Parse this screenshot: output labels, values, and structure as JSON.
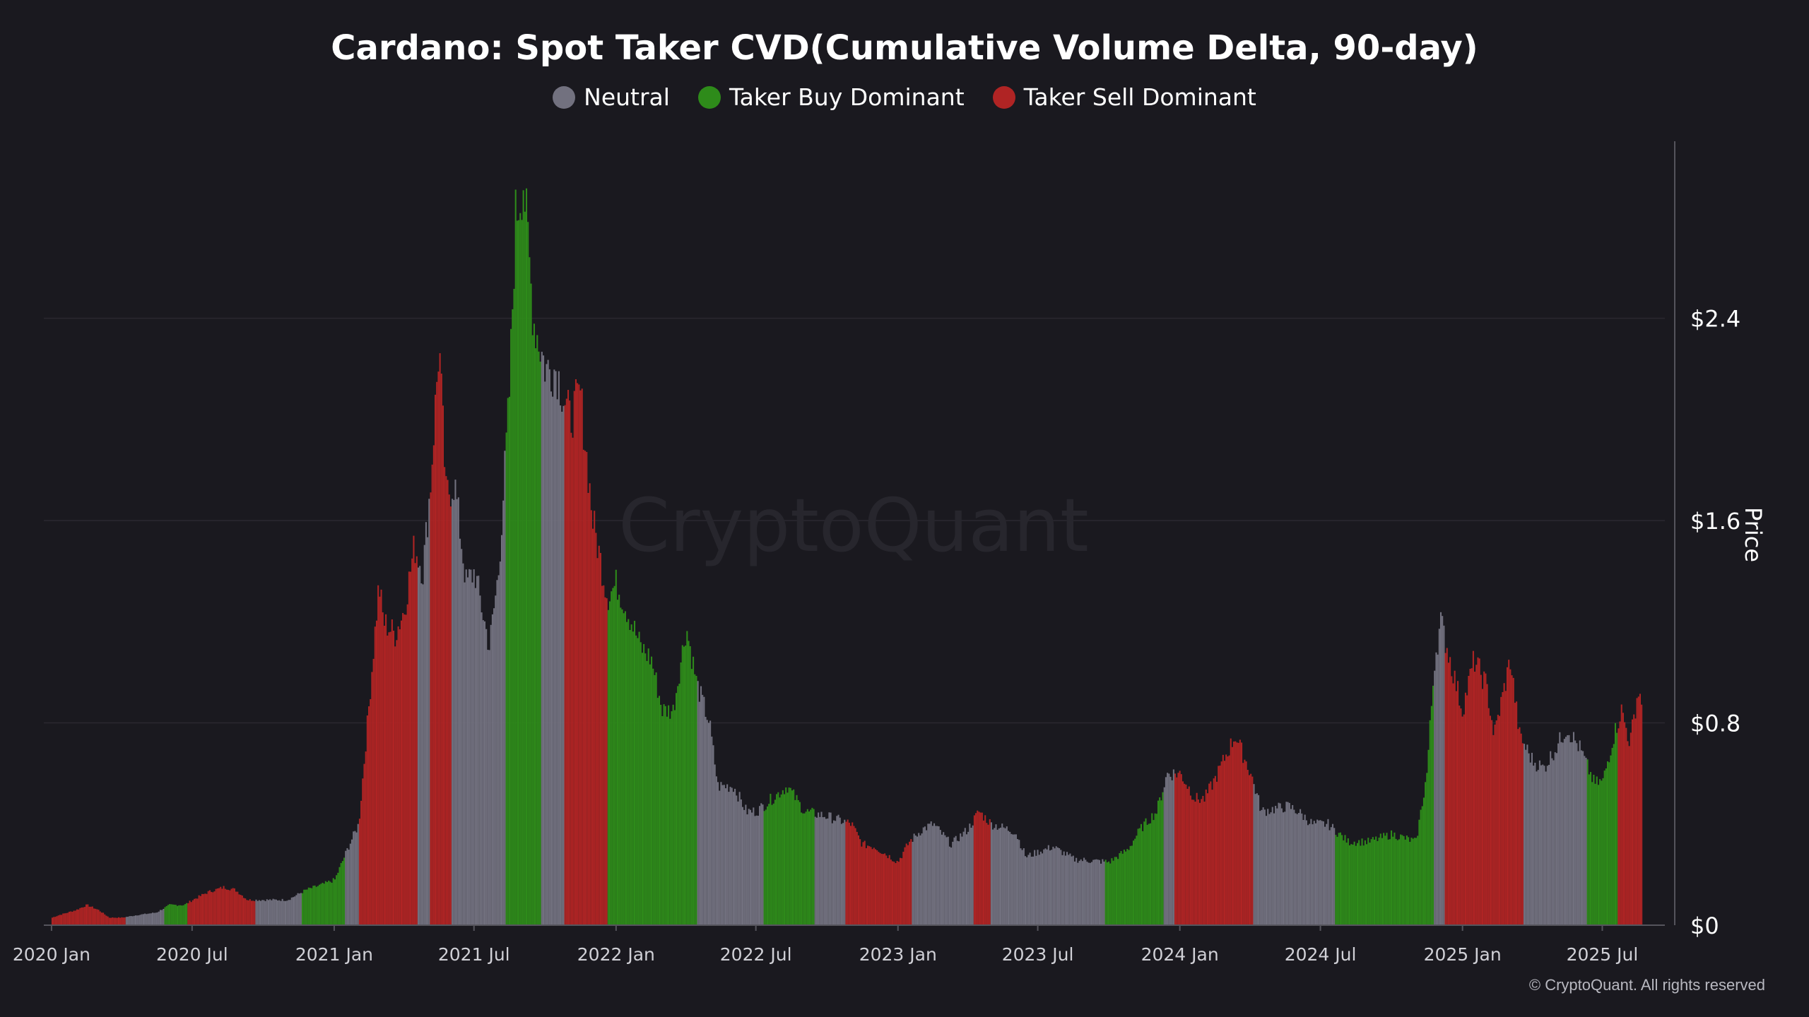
{
  "chart_data": {
    "type": "bar",
    "title": "Cardano: Spot Taker CVD(Cumulative Volume Delta, 90-day)",
    "ylabel": "Price",
    "yunit": "USD",
    "ylim": [
      0,
      3.1
    ],
    "y_ticks": [
      {
        "value": 0,
        "label": "$0"
      },
      {
        "value": 0.8,
        "label": "$0.8"
      },
      {
        "value": 1.6,
        "label": "$1.6"
      },
      {
        "value": 2.4,
        "label": "$2.4"
      }
    ],
    "xlim": [
      "2019-12-22",
      "2025-09-20"
    ],
    "x_ticks": [
      {
        "date": "2020-01-01",
        "label": "2020 Jan"
      },
      {
        "date": "2020-07-01",
        "label": "2020 Jul"
      },
      {
        "date": "2021-01-01",
        "label": "2021 Jan"
      },
      {
        "date": "2021-07-01",
        "label": "2021 Jul"
      },
      {
        "date": "2022-01-01",
        "label": "2022 Jan"
      },
      {
        "date": "2022-07-01",
        "label": "2022 Jul"
      },
      {
        "date": "2023-01-01",
        "label": "2023 Jan"
      },
      {
        "date": "2023-07-01",
        "label": "2023 Jul"
      },
      {
        "date": "2024-01-01",
        "label": "2024 Jan"
      },
      {
        "date": "2024-07-01",
        "label": "2024 Jul"
      },
      {
        "date": "2025-01-01",
        "label": "2025 Jan"
      },
      {
        "date": "2025-07-01",
        "label": "2025 Jul"
      }
    ],
    "grid": true,
    "legend_position": "top-center",
    "legend": [
      {
        "label": "Neutral",
        "color": "#72717f"
      },
      {
        "label": "Taker Buy Dominant",
        "color": "#2e8b1a"
      },
      {
        "label": "Taker Sell Dominant",
        "color": "#b02424"
      }
    ],
    "price": [
      [
        "2020-01-01",
        0.03
      ],
      [
        "2020-01-10",
        0.04
      ],
      [
        "2020-02-01",
        0.06
      ],
      [
        "2020-02-15",
        0.08
      ],
      [
        "2020-03-01",
        0.06
      ],
      [
        "2020-03-15",
        0.03
      ],
      [
        "2020-04-01",
        0.03
      ],
      [
        "2020-04-20",
        0.04
      ],
      [
        "2020-05-15",
        0.05
      ],
      [
        "2020-06-01",
        0.08
      ],
      [
        "2020-06-20",
        0.08
      ],
      [
        "2020-07-01",
        0.1
      ],
      [
        "2020-07-20",
        0.13
      ],
      [
        "2020-08-10",
        0.15
      ],
      [
        "2020-08-25",
        0.14
      ],
      [
        "2020-09-10",
        0.1
      ],
      [
        "2020-10-01",
        0.1
      ],
      [
        "2020-11-01",
        0.1
      ],
      [
        "2020-11-25",
        0.14
      ],
      [
        "2020-12-15",
        0.16
      ],
      [
        "2021-01-01",
        0.18
      ],
      [
        "2021-01-20",
        0.32
      ],
      [
        "2021-02-01",
        0.4
      ],
      [
        "2021-02-15",
        0.9
      ],
      [
        "2021-02-27",
        1.35
      ],
      [
        "2021-03-05",
        1.2
      ],
      [
        "2021-03-20",
        1.15
      ],
      [
        "2021-04-01",
        1.25
      ],
      [
        "2021-04-14",
        1.5
      ],
      [
        "2021-04-25",
        1.4
      ],
      [
        "2021-05-05",
        1.75
      ],
      [
        "2021-05-16",
        2.3
      ],
      [
        "2021-05-25",
        1.7
      ],
      [
        "2021-06-05",
        1.75
      ],
      [
        "2021-06-20",
        1.35
      ],
      [
        "2021-07-01",
        1.4
      ],
      [
        "2021-07-20",
        1.1
      ],
      [
        "2021-08-01",
        1.4
      ],
      [
        "2021-08-15",
        2.1
      ],
      [
        "2021-08-23",
        2.8
      ],
      [
        "2021-09-02",
        2.95
      ],
      [
        "2021-09-15",
        2.4
      ],
      [
        "2021-10-01",
        2.2
      ],
      [
        "2021-10-15",
        2.2
      ],
      [
        "2021-11-01",
        2.0
      ],
      [
        "2021-11-15",
        2.1
      ],
      [
        "2021-12-01",
        1.6
      ],
      [
        "2021-12-20",
        1.3
      ],
      [
        "2022-01-01",
        1.35
      ],
      [
        "2022-01-20",
        1.2
      ],
      [
        "2022-02-01",
        1.1
      ],
      [
        "2022-02-15",
        1.05
      ],
      [
        "2022-03-01",
        0.85
      ],
      [
        "2022-03-15",
        0.85
      ],
      [
        "2022-04-01",
        1.18
      ],
      [
        "2022-04-15",
        0.95
      ],
      [
        "2022-05-01",
        0.8
      ],
      [
        "2022-05-12",
        0.55
      ],
      [
        "2022-06-01",
        0.55
      ],
      [
        "2022-06-18",
        0.45
      ],
      [
        "2022-07-01",
        0.45
      ],
      [
        "2022-08-10",
        0.55
      ],
      [
        "2022-09-01",
        0.45
      ],
      [
        "2022-10-01",
        0.43
      ],
      [
        "2022-11-01",
        0.4
      ],
      [
        "2022-11-15",
        0.32
      ],
      [
        "2022-12-01",
        0.31
      ],
      [
        "2022-12-31",
        0.25
      ],
      [
        "2023-01-15",
        0.33
      ],
      [
        "2023-02-01",
        0.38
      ],
      [
        "2023-02-15",
        0.4
      ],
      [
        "2023-03-10",
        0.32
      ],
      [
        "2023-04-01",
        0.38
      ],
      [
        "2023-04-15",
        0.45
      ],
      [
        "2023-05-01",
        0.4
      ],
      [
        "2023-06-01",
        0.37
      ],
      [
        "2023-06-15",
        0.27
      ],
      [
        "2023-07-01",
        0.29
      ],
      [
        "2023-07-20",
        0.31
      ],
      [
        "2023-08-17",
        0.26
      ],
      [
        "2023-10-01",
        0.25
      ],
      [
        "2023-10-25",
        0.3
      ],
      [
        "2023-11-10",
        0.38
      ],
      [
        "2023-12-01",
        0.45
      ],
      [
        "2023-12-15",
        0.6
      ],
      [
        "2024-01-01",
        0.6
      ],
      [
        "2024-01-20",
        0.5
      ],
      [
        "2024-02-01",
        0.5
      ],
      [
        "2024-02-15",
        0.58
      ],
      [
        "2024-03-01",
        0.68
      ],
      [
        "2024-03-12",
        0.75
      ],
      [
        "2024-04-01",
        0.6
      ],
      [
        "2024-04-15",
        0.45
      ],
      [
        "2024-05-01",
        0.46
      ],
      [
        "2024-05-20",
        0.47
      ],
      [
        "2024-06-01",
        0.45
      ],
      [
        "2024-06-20",
        0.4
      ],
      [
        "2024-07-10",
        0.4
      ],
      [
        "2024-08-05",
        0.33
      ],
      [
        "2024-09-01",
        0.33
      ],
      [
        "2024-10-01",
        0.36
      ],
      [
        "2024-11-01",
        0.33
      ],
      [
        "2024-11-15",
        0.6
      ],
      [
        "2024-11-25",
        1.05
      ],
      [
        "2024-12-03",
        1.2
      ],
      [
        "2024-12-15",
        1.05
      ],
      [
        "2024-12-31",
        0.85
      ],
      [
        "2025-01-15",
        1.05
      ],
      [
        "2025-01-31",
        0.95
      ],
      [
        "2025-02-10",
        0.75
      ],
      [
        "2025-03-03",
        1.05
      ],
      [
        "2025-03-15",
        0.75
      ],
      [
        "2025-04-01",
        0.65
      ],
      [
        "2025-04-15",
        0.62
      ],
      [
        "2025-05-01",
        0.7
      ],
      [
        "2025-05-15",
        0.78
      ],
      [
        "2025-06-01",
        0.7
      ],
      [
        "2025-06-20",
        0.56
      ],
      [
        "2025-07-01",
        0.57
      ],
      [
        "2025-07-15",
        0.75
      ],
      [
        "2025-07-25",
        0.85
      ],
      [
        "2025-08-05",
        0.72
      ],
      [
        "2025-08-15",
        0.92
      ],
      [
        "2025-08-20",
        0.9
      ]
    ],
    "regimes": [
      {
        "start": "2020-01-01",
        "end": "2020-04-05",
        "class": "sell"
      },
      {
        "start": "2020-04-05",
        "end": "2020-05-25",
        "class": "neutral"
      },
      {
        "start": "2020-05-25",
        "end": "2020-06-25",
        "class": "buy"
      },
      {
        "start": "2020-06-25",
        "end": "2020-09-20",
        "class": "sell"
      },
      {
        "start": "2020-09-20",
        "end": "2020-11-20",
        "class": "neutral"
      },
      {
        "start": "2020-11-20",
        "end": "2021-01-15",
        "class": "buy"
      },
      {
        "start": "2021-01-15",
        "end": "2021-02-01",
        "class": "neutral"
      },
      {
        "start": "2021-02-01",
        "end": "2021-04-18",
        "class": "sell"
      },
      {
        "start": "2021-04-18",
        "end": "2021-05-05",
        "class": "neutral"
      },
      {
        "start": "2021-05-05",
        "end": "2021-06-02",
        "class": "sell"
      },
      {
        "start": "2021-06-02",
        "end": "2021-08-10",
        "class": "neutral"
      },
      {
        "start": "2021-08-10",
        "end": "2021-09-25",
        "class": "buy"
      },
      {
        "start": "2021-09-25",
        "end": "2021-10-25",
        "class": "neutral"
      },
      {
        "start": "2021-10-25",
        "end": "2021-12-20",
        "class": "sell"
      },
      {
        "start": "2021-12-20",
        "end": "2022-04-15",
        "class": "buy"
      },
      {
        "start": "2022-04-15",
        "end": "2022-07-10",
        "class": "neutral"
      },
      {
        "start": "2022-07-10",
        "end": "2022-09-15",
        "class": "buy"
      },
      {
        "start": "2022-09-15",
        "end": "2022-10-25",
        "class": "neutral"
      },
      {
        "start": "2022-10-25",
        "end": "2023-01-18",
        "class": "sell"
      },
      {
        "start": "2023-01-18",
        "end": "2023-04-08",
        "class": "neutral"
      },
      {
        "start": "2023-04-08",
        "end": "2023-05-01",
        "class": "sell"
      },
      {
        "start": "2023-05-01",
        "end": "2023-09-25",
        "class": "neutral"
      },
      {
        "start": "2023-09-25",
        "end": "2023-12-10",
        "class": "buy"
      },
      {
        "start": "2023-12-10",
        "end": "2023-12-25",
        "class": "neutral"
      },
      {
        "start": "2023-12-25",
        "end": "2024-04-05",
        "class": "sell"
      },
      {
        "start": "2024-04-05",
        "end": "2024-07-20",
        "class": "neutral"
      },
      {
        "start": "2024-07-20",
        "end": "2024-11-25",
        "class": "buy"
      },
      {
        "start": "2024-11-25",
        "end": "2024-12-08",
        "class": "neutral"
      },
      {
        "start": "2024-12-08",
        "end": "2025-03-20",
        "class": "sell"
      },
      {
        "start": "2025-03-20",
        "end": "2025-06-10",
        "class": "neutral"
      },
      {
        "start": "2025-06-10",
        "end": "2025-07-20",
        "class": "buy"
      },
      {
        "start": "2025-07-20",
        "end": "2025-08-20",
        "class": "sell"
      }
    ]
  },
  "watermark": "CryptoQuant",
  "copyright": "© CryptoQuant. All rights reserved",
  "colors": {
    "background": "#1a191f",
    "grid": "#2a2930",
    "axis": "#55545c",
    "neutral": "#72717f",
    "buy": "#2e8b1a",
    "sell": "#b02424",
    "text": "#ffffff",
    "tick_text": "#d0d0d6",
    "watermark": "#27262d"
  }
}
